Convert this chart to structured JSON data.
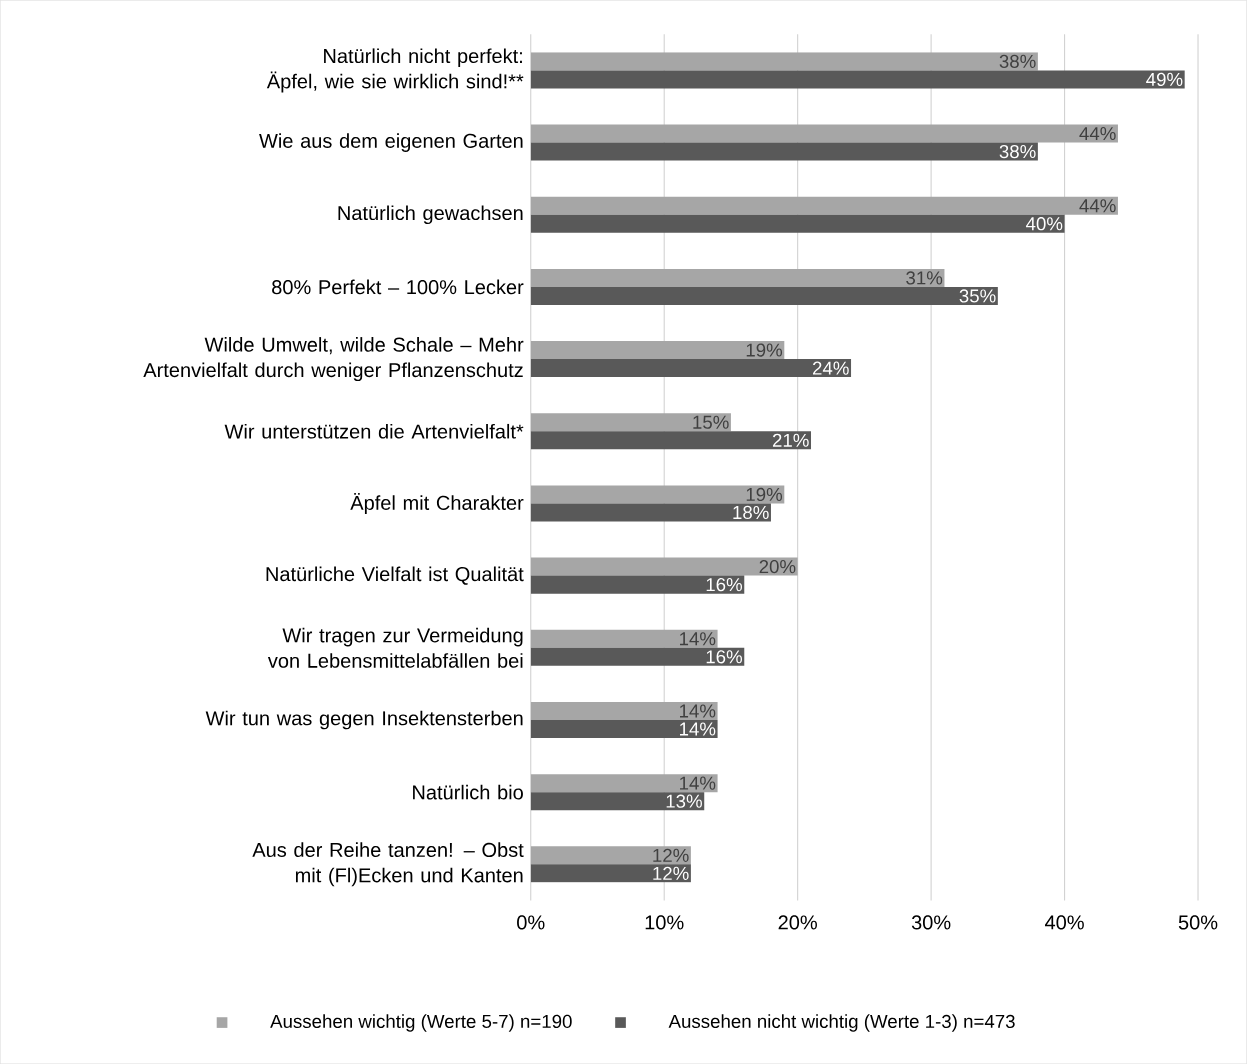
{
  "chart_data": {
    "type": "bar",
    "orientation": "horizontal",
    "categories": [
      "Natürlich nicht perfekt: Äpfel, wie sie wirklich sind!**",
      "Wie aus dem eigenen Garten",
      "Natürlich gewachsen",
      "80% Perfekt – 100% Lecker",
      "Wilde Umwelt, wilde Schale – Mehr Artenvielfalt durch weniger Pflanzenschutz",
      "Wir unterstützen die Artenvielfalt*",
      "Äpfel mit Charakter",
      "Natürliche Vielfalt ist Qualität",
      "Wir tragen zur Vermeidung von Lebensmittelabfällen bei",
      "Wir tun was gegen Insektensterben",
      "Natürlich bio",
      "Aus der Reihe tanzen! – Obst mit (Fl)Ecken und Kanten"
    ],
    "series": [
      {
        "name": "Aussehen wichtig (Werte 5-7)   n=190",
        "color": "#a6a6a6",
        "values": [
          38,
          44,
          44,
          31,
          19,
          15,
          19,
          20,
          14,
          14,
          14,
          12
        ],
        "value_labels": [
          "38%",
          "44%",
          "44%",
          "31%",
          "19%",
          "15%",
          "19%",
          "20%",
          "14%",
          "14%",
          "14%",
          "12%"
        ]
      },
      {
        "name": "Aussehen nicht wichtig (Werte 1-3)   n=473",
        "color": "#595959",
        "values": [
          49,
          38,
          40,
          35,
          24,
          21,
          18,
          16,
          16,
          14,
          13,
          12
        ],
        "value_labels": [
          "49%",
          "38%",
          "40%",
          "35%",
          "24%",
          "21%",
          "18%",
          "16%",
          "16%",
          "14%",
          "13%",
          "12%"
        ]
      }
    ],
    "xlim": [
      0,
      50
    ],
    "xticks": [
      {
        "value": 0,
        "label": "0%"
      },
      {
        "value": 10,
        "label": "10%"
      },
      {
        "value": 20,
        "label": "20%"
      },
      {
        "value": 30,
        "label": "30%"
      },
      {
        "value": 40,
        "label": "40%"
      },
      {
        "value": 50,
        "label": "50%"
      }
    ],
    "grid": "x",
    "legend": "bottom"
  }
}
